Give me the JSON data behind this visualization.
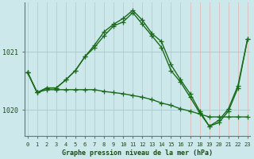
{
  "title": "Graphe pression niveau de la mer (hPa)",
  "bg_color": "#cce8ea",
  "grid_color": "#aacccc",
  "line_color": "#1a6b1a",
  "x_labels": [
    "0",
    "1",
    "2",
    "3",
    "4",
    "5",
    "6",
    "7",
    "8",
    "9",
    "10",
    "11",
    "12",
    "13",
    "14",
    "15",
    "16",
    "17",
    "18",
    "19",
    "20",
    "21",
    "22",
    "23"
  ],
  "yticks": [
    1020,
    1021
  ],
  "ylim": [
    1019.55,
    1021.85
  ],
  "xlim": [
    -0.3,
    23.3
  ],
  "series1": [
    1020.65,
    1020.3,
    1020.38,
    1020.38,
    1020.52,
    1020.68,
    1020.92,
    1021.12,
    1021.35,
    1021.48,
    1021.58,
    1021.72,
    1021.55,
    1021.32,
    1021.18,
    1020.78,
    1020.52,
    1020.28,
    1019.98,
    1019.72,
    1019.82,
    1020.02,
    1020.42,
    1021.22
  ],
  "series2": [
    1020.65,
    1020.3,
    1020.35,
    1020.35,
    1020.35,
    1020.35,
    1020.35,
    1020.35,
    1020.32,
    1020.3,
    1020.28,
    1020.25,
    1020.22,
    1020.18,
    1020.12,
    1020.08,
    1020.02,
    1019.98,
    1019.93,
    1019.88,
    1019.88,
    1019.88,
    1019.88,
    1019.88
  ],
  "series3": [
    1020.65,
    1020.3,
    1020.38,
    1020.38,
    1020.52,
    1020.68,
    1020.92,
    1021.08,
    1021.28,
    1021.45,
    1021.52,
    1021.68,
    1021.48,
    1021.28,
    1021.08,
    1020.68,
    1020.48,
    1020.22,
    1019.95,
    1019.72,
    1019.78,
    1019.98,
    1020.38,
    1021.22
  ]
}
